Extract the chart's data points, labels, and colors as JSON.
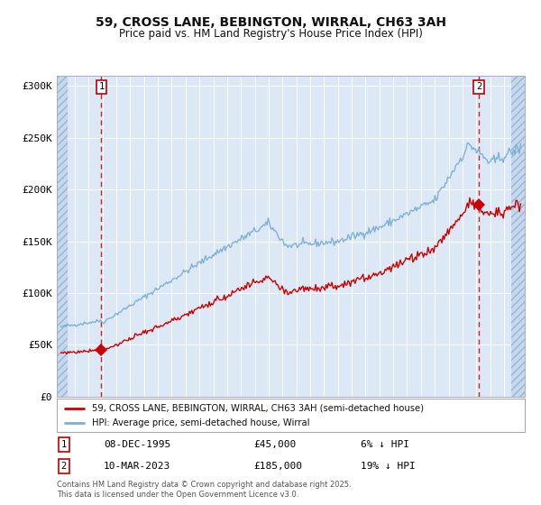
{
  "title_line1": "59, CROSS LANE, BEBINGTON, WIRRAL, CH63 3AH",
  "title_line2": "Price paid vs. HM Land Registry's House Price Index (HPI)",
  "bg_color": "#ffffff",
  "plot_bg": "#dce8f5",
  "hatch_facecolor": "#c5d8ed",
  "grid_color": "#ffffff",
  "red_line_color": "#cc0000",
  "blue_line_color": "#7aafd4",
  "sale1_date": "08-DEC-1995",
  "sale1_price": 45000,
  "sale1_label": "6% ↓ HPI",
  "sale2_date": "10-MAR-2023",
  "sale2_price": 185000,
  "sale2_label": "19% ↓ HPI",
  "legend_label1": "59, CROSS LANE, BEBINGTON, WIRRAL, CH63 3AH (semi-detached house)",
  "legend_label2": "HPI: Average price, semi-detached house, Wirral",
  "footer": "Contains HM Land Registry data © Crown copyright and database right 2025.\nThis data is licensed under the Open Government Licence v3.0.",
  "ylabel_ticks": [
    "£0",
    "£50K",
    "£100K",
    "£150K",
    "£200K",
    "£250K",
    "£300K"
  ],
  "ylabel_values": [
    0,
    50000,
    100000,
    150000,
    200000,
    250000,
    300000
  ],
  "sale1_x": 1995.92,
  "sale2_x": 2023.19,
  "ylim": [
    0,
    310000
  ],
  "xlim_start": 1992.7,
  "xlim_end": 2026.5,
  "hatch_left_end": 1993.5,
  "hatch_right_start": 2025.5
}
